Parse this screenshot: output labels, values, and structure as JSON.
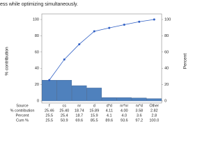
{
  "chart_data": {
    "type": "pareto",
    "top_text": "ess while optimizing simultaneously.",
    "ylabel": "% contribution",
    "y2label": "Percent",
    "row_header": "Source",
    "categories": [
      "f",
      "cs",
      "nr",
      "d",
      "d*d",
      "nr*nr",
      "nr*d",
      "Other"
    ],
    "ylim": [
      0,
      100
    ],
    "yticks": [
      0,
      20,
      40,
      60,
      80,
      100
    ],
    "y2lim": [
      0,
      100
    ],
    "y2ticks": [
      0,
      20,
      40,
      60,
      80,
      100
    ],
    "series": [
      {
        "name": "% contribution",
        "color": "#4f81bd",
        "values": [
          25.46,
          25.4,
          18.74,
          15.89,
          4.11,
          4.0,
          3.58,
          2.82
        ],
        "value_labels": [
          "25.46",
          "25.40",
          "18.74",
          "15.89",
          "4.11",
          "4.00",
          "3.58",
          "2.82"
        ]
      },
      {
        "name": "Percent",
        "values": [
          25.5,
          25.4,
          18.7,
          15.9,
          4.1,
          4.0,
          3.6,
          2.8
        ],
        "value_labels": [
          "25.5",
          "25.4",
          "18.7",
          "15.9",
          "4.1",
          "4.0",
          "3.6",
          "2.8"
        ]
      },
      {
        "name": "Cum %",
        "color": "#2f5fc4",
        "axis": "y2",
        "values": [
          25.5,
          50.9,
          69.6,
          85.5,
          89.6,
          93.6,
          97.2,
          100.0
        ],
        "value_labels": [
          "25.5",
          "50.9",
          "69.6",
          "85.5",
          "89.6",
          "93.6",
          "97.2",
          "100.0"
        ]
      }
    ]
  }
}
